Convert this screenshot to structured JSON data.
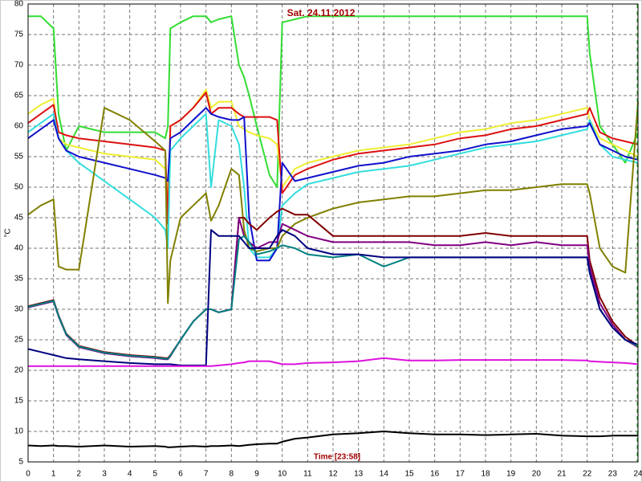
{
  "chart_data": {
    "type": "line",
    "title": "Sat. 24.11.2012",
    "x_label": "Time [23:58]",
    "y_label": "°C",
    "x": [
      0,
      0.5,
      1,
      1.2,
      1.5,
      2,
      3,
      4,
      5,
      5.4,
      5.5,
      5.6,
      6,
      6.5,
      7,
      7.2,
      7.5,
      8,
      8.3,
      8.5,
      8.7,
      9,
      9.5,
      9.8,
      10,
      10.5,
      11,
      12,
      13,
      14,
      15,
      16,
      17,
      18,
      19,
      20,
      21,
      22,
      22.1,
      22.5,
      23,
      23.5,
      24
    ],
    "xlim": [
      0,
      24
    ],
    "xticks": [
      0,
      1,
      2,
      3,
      4,
      5,
      6,
      7,
      8,
      9,
      10,
      11,
      12,
      13,
      14,
      15,
      16,
      17,
      18,
      19,
      20,
      21,
      22,
      23,
      24
    ],
    "ylim": [
      5,
      80
    ],
    "yticks": [
      5,
      10,
      15,
      20,
      25,
      30,
      35,
      40,
      45,
      50,
      55,
      60,
      65,
      70,
      75,
      80
    ],
    "grid": true,
    "series": [
      {
        "color": "#33dd33",
        "values": [
          78,
          78,
          76,
          62,
          56,
          60,
          59,
          59,
          59,
          58,
          60,
          76,
          77,
          78,
          78,
          77,
          77.5,
          78,
          70,
          68,
          65,
          60,
          52,
          50,
          77,
          77.5,
          78,
          78,
          78,
          78,
          78,
          78,
          78,
          78,
          78,
          78,
          78,
          78,
          72,
          60,
          57,
          54,
          59
        ]
      },
      {
        "color": "#eeee33",
        "values": [
          62,
          63.5,
          64.5,
          58,
          57,
          56.5,
          55.5,
          55,
          54.5,
          53,
          48,
          60,
          61,
          63,
          66,
          63,
          64,
          64,
          60,
          59.5,
          59,
          58.5,
          58,
          57,
          50,
          53,
          54,
          55,
          56,
          56.5,
          57,
          58,
          59,
          59.5,
          60.5,
          61,
          62,
          63,
          61,
          58,
          57,
          56,
          55
        ]
      },
      {
        "color": "#dd1111",
        "values": [
          60.5,
          62,
          63.5,
          59,
          58.5,
          58,
          57.5,
          57,
          56.5,
          56,
          44,
          60,
          61,
          63,
          65.5,
          62,
          63,
          63,
          62,
          61.5,
          61.5,
          61.5,
          61.5,
          61,
          49,
          52,
          53,
          54.5,
          55.5,
          56,
          56.5,
          57,
          58,
          58.5,
          59.5,
          60,
          61,
          62,
          63,
          59,
          58,
          57.5,
          57
        ]
      },
      {
        "color": "#33dddd",
        "values": [
          59,
          60.5,
          62,
          58,
          56,
          54,
          51,
          48,
          45,
          43,
          40,
          56,
          58,
          60,
          62,
          50,
          61,
          60,
          57,
          50,
          40,
          38.5,
          38.5,
          40,
          47,
          49,
          50.5,
          51.5,
          52.5,
          53,
          53.5,
          54.5,
          55.5,
          56.5,
          57,
          57.5,
          58.5,
          59.5,
          61,
          57,
          55,
          54.5,
          54
        ]
      },
      {
        "color": "#1111cc",
        "values": [
          58,
          59.5,
          61,
          58,
          56,
          55,
          54,
          53,
          52,
          51.5,
          51,
          58,
          59,
          61,
          63,
          62,
          61.5,
          61,
          61,
          61.5,
          45,
          38,
          38,
          40,
          54,
          51,
          51.5,
          52.5,
          53.5,
          54,
          55,
          55.5,
          56,
          57,
          57.5,
          58.5,
          59.5,
          60,
          60.5,
          57,
          56,
          55,
          54.5
        ]
      },
      {
        "color": "#808000",
        "values": [
          45.5,
          47,
          48,
          37,
          36.5,
          36.5,
          63,
          61,
          57.5,
          56,
          31,
          38,
          45,
          47,
          49,
          44.5,
          47,
          53,
          52,
          43,
          40,
          39.5,
          40,
          40,
          42,
          44,
          45,
          46.5,
          47.5,
          48,
          48.5,
          48.5,
          49,
          49.5,
          49.5,
          50,
          50.5,
          50.5,
          49,
          40,
          37,
          36,
          64
        ]
      },
      {
        "color": "#800000",
        "values": [
          30.5,
          31,
          31.5,
          29,
          26,
          24,
          23,
          22.5,
          22.2,
          22,
          22,
          22.5,
          25,
          28,
          30,
          30,
          29.5,
          30,
          45,
          45,
          44,
          43,
          45,
          46,
          46.5,
          45.5,
          45.5,
          42,
          42,
          42,
          42,
          42,
          42,
          42.5,
          42,
          42,
          42,
          42,
          38,
          32,
          28,
          25.5,
          24
        ]
      },
      {
        "color": "#800080",
        "values": [
          30.3,
          30.8,
          31.3,
          28.8,
          25.8,
          23.8,
          22.8,
          22.3,
          22,
          21.8,
          21.8,
          22.3,
          25,
          28,
          30,
          30,
          29.5,
          30,
          45,
          42,
          41,
          40,
          41,
          41,
          44,
          43,
          42,
          41,
          41,
          41,
          41,
          40.5,
          40.5,
          41,
          40.5,
          41,
          40.5,
          40.5,
          37,
          31,
          27.5,
          25,
          23.8
        ]
      },
      {
        "color": "#008080",
        "values": [
          30.4,
          30.9,
          31.4,
          28.9,
          25.9,
          23.9,
          22.9,
          22.4,
          22.1,
          21.9,
          21.9,
          22.4,
          25,
          28,
          30,
          30,
          29.5,
          30,
          41.5,
          42,
          41,
          39,
          39.5,
          40,
          40.5,
          40,
          39,
          38.5,
          39,
          37,
          38.5,
          38.5,
          38.5,
          38.5,
          38.5,
          38.5,
          38.5,
          38.5,
          36,
          30,
          27,
          25,
          24
        ]
      },
      {
        "color": "#000080",
        "values": [
          23.5,
          23,
          22.5,
          22.3,
          22,
          21.8,
          21.5,
          21.2,
          21,
          21,
          21,
          21,
          20.8,
          20.8,
          20.8,
          43,
          42,
          42,
          42,
          41,
          40,
          40,
          40,
          42,
          43,
          42,
          40,
          39,
          39,
          38.5,
          38.5,
          38.5,
          38.5,
          38.5,
          38.5,
          38.5,
          38.5,
          38.5,
          36,
          30,
          27,
          25,
          24.2
        ]
      },
      {
        "color": "#dd11dd",
        "values": [
          20.7,
          20.7,
          20.7,
          20.7,
          20.7,
          20.7,
          20.7,
          20.7,
          20.7,
          20.7,
          20.7,
          20.7,
          20.7,
          20.7,
          20.7,
          20.7,
          20.8,
          21,
          21.2,
          21.3,
          21.5,
          21.5,
          21.5,
          21.2,
          21,
          21,
          21.2,
          21.3,
          21.5,
          22,
          21.6,
          21.6,
          21.7,
          21.7,
          21.7,
          21.7,
          21.7,
          21.6,
          21.5,
          21.4,
          21.3,
          21.2,
          21
        ]
      },
      {
        "color": "#000000",
        "values": [
          7.7,
          7.6,
          7.7,
          7.6,
          7.6,
          7.5,
          7.7,
          7.5,
          7.6,
          7.5,
          7.4,
          7.4,
          7.5,
          7.6,
          7.5,
          7.6,
          7.6,
          7.7,
          7.6,
          7.7,
          7.8,
          7.9,
          8,
          8,
          8.3,
          8.8,
          9,
          9.5,
          9.7,
          10,
          9.7,
          9.5,
          9.5,
          9.4,
          9.5,
          9.6,
          9.3,
          9.2,
          9.2,
          9.2,
          9.3,
          9.3,
          9.3
        ]
      }
    ]
  }
}
